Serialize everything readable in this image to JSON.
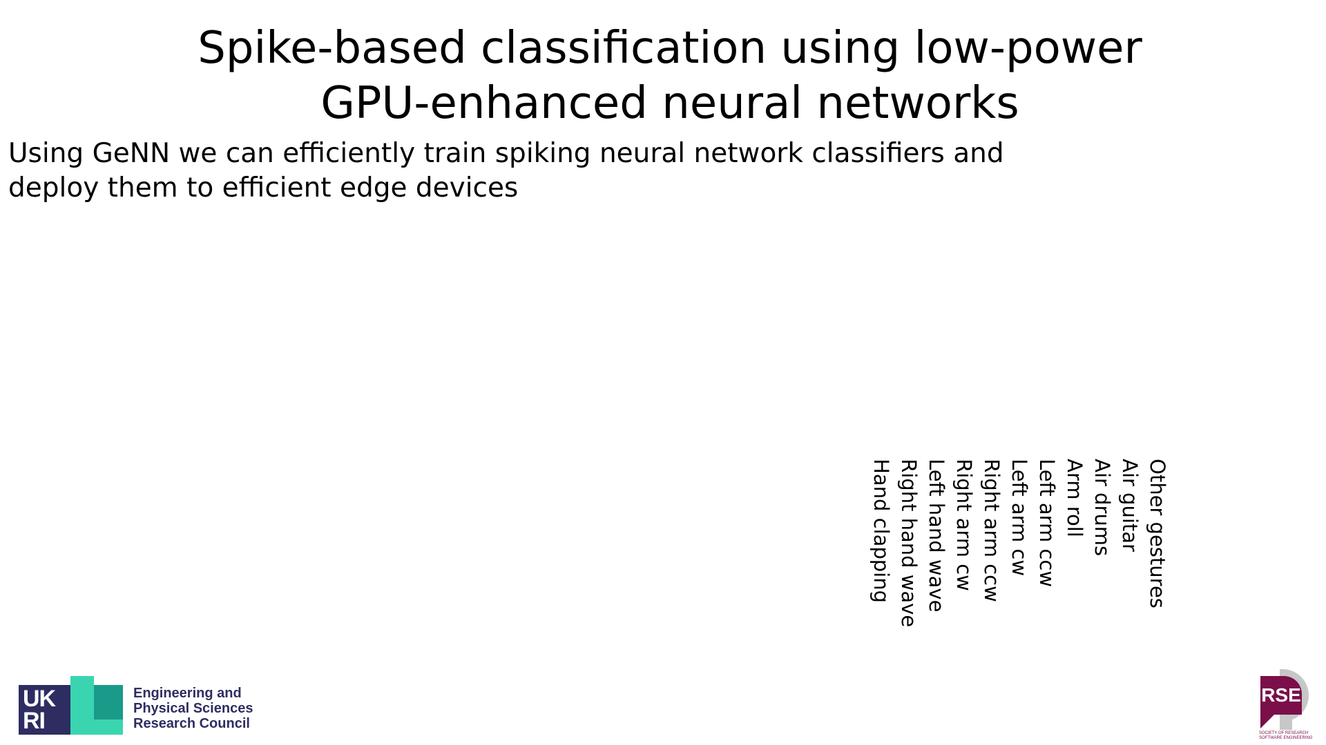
{
  "slide": {
    "title_lines": [
      "Spike-based classification using low-power",
      "GPU-enhanced neural networks"
    ],
    "subtitle_lines": [
      "Using GeNN we can efficiently train spiking neural network classifiers and",
      "deploy them to efficient edge devices"
    ]
  },
  "gesture_labels": [
    "Other gestures",
    "Air guitar",
    "Air drums",
    "Arm roll",
    "Left arm ccw",
    "Left arm cw",
    "Right arm ccw",
    "Right arm cw",
    "Left hand wave",
    "Right hand wave",
    "Hand clapping"
  ],
  "logos": {
    "ukri": {
      "mark_top": "UK",
      "mark_bottom": "RI",
      "lines": [
        "Engineering and",
        "Physical Sciences",
        "Research Council"
      ],
      "colors": {
        "navy": "#2e2d62",
        "green": "#3ad5b0",
        "teal": "#1a9b89"
      }
    },
    "rse": {
      "mark": "RSE",
      "caption_lines": [
        "SOCIETY OF RESEARCH",
        "SOFTWARE ENGINEERING"
      ],
      "colors": {
        "plum": "#7a0f4a",
        "grey": "#c7c7c7"
      }
    }
  }
}
